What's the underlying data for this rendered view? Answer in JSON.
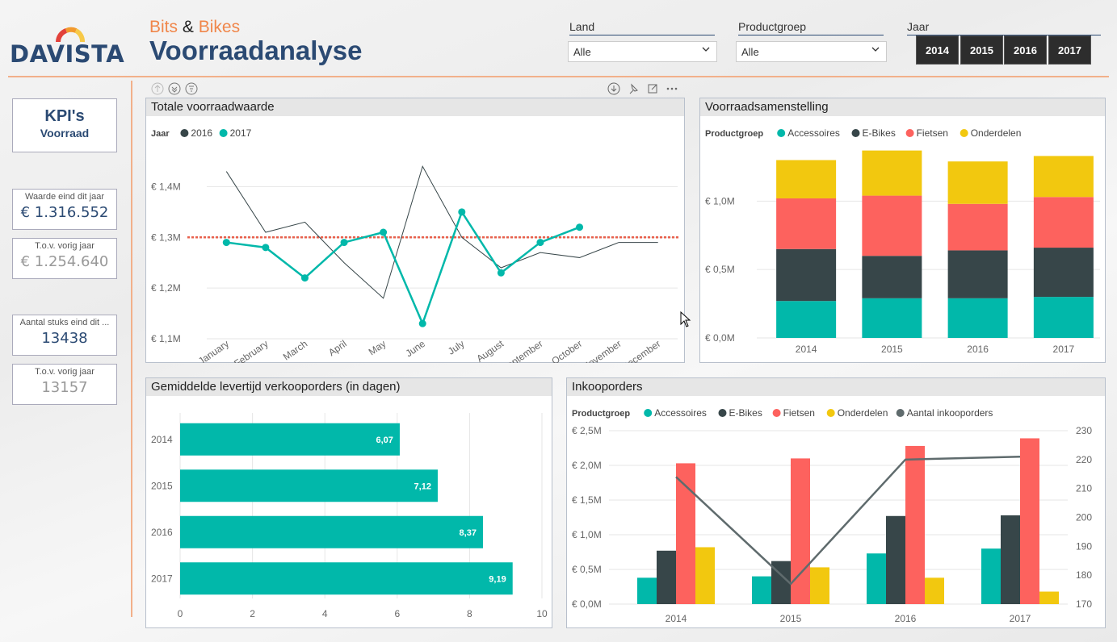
{
  "header": {
    "brand_part1": "Bits",
    "brand_amp": "&",
    "brand_part2": "Bikes",
    "title": "Voorraadanalyse",
    "logo_text": "DAVISTA"
  },
  "slicers": {
    "land": {
      "label": "Land",
      "value": "Alle"
    },
    "productgroep": {
      "label": "Productgroep",
      "value": "Alle"
    },
    "jaar": {
      "label": "Jaar",
      "years": [
        "2014",
        "2015",
        "2016",
        "2017"
      ]
    }
  },
  "kpi": {
    "title": "KPI's",
    "subtitle": "Voorraad",
    "cards": [
      {
        "label": "Waarde eind dit jaar",
        "value": "€ 1.316.552"
      },
      {
        "label": "T.o.v. vorig jaar",
        "value": "€ 1.254.640"
      },
      {
        "label": "Aantal stuks eind dit ...",
        "value": "13438"
      },
      {
        "label": "T.o.v. vorig jaar",
        "value": "13157"
      }
    ]
  },
  "colors": {
    "teal": "#01b8aa",
    "dark": "#374649",
    "red": "#fd625e",
    "yellow": "#f2c80f",
    "line_grey": "#5f6b6d",
    "ref_red": "#e8604c"
  },
  "chart_data": [
    {
      "id": "totale",
      "type": "line",
      "title": "Totale voorraadwaarde",
      "legend_title": "Jaar",
      "categories": [
        "January",
        "February",
        "March",
        "April",
        "May",
        "June",
        "July",
        "August",
        "September",
        "October",
        "November",
        "December"
      ],
      "yticks": [
        "€ 1,1M",
        "€ 1,2M",
        "€ 1,3M",
        "€ 1,4M"
      ],
      "ylim": [
        1.1,
        1.45
      ],
      "reference_line": 1.3,
      "series": [
        {
          "name": "2016",
          "color": "#374649",
          "values": [
            1.43,
            1.31,
            1.33,
            1.25,
            1.18,
            1.44,
            1.3,
            1.24,
            1.27,
            1.26,
            1.29,
            1.29
          ]
        },
        {
          "name": "2017",
          "color": "#01b8aa",
          "values": [
            1.29,
            1.28,
            1.22,
            1.29,
            1.31,
            1.13,
            1.35,
            1.23,
            1.29,
            1.32,
            null,
            null
          ]
        }
      ]
    },
    {
      "id": "samenstelling",
      "type": "bar",
      "stacked": true,
      "title": "Voorraadsamenstelling",
      "legend_title": "Productgroep",
      "categories": [
        "2014",
        "2015",
        "2016",
        "2017"
      ],
      "yticks": [
        "€ 0,0M",
        "€ 0,5M",
        "€ 1,0M"
      ],
      "ylim": [
        0,
        1.35
      ],
      "series": [
        {
          "name": "Accessoires",
          "color": "#01b8aa",
          "values": [
            0.27,
            0.29,
            0.29,
            0.3
          ]
        },
        {
          "name": "E-Bikes",
          "color": "#374649",
          "values": [
            0.38,
            0.31,
            0.35,
            0.36
          ]
        },
        {
          "name": "Fietsen",
          "color": "#fd625e",
          "values": [
            0.37,
            0.44,
            0.34,
            0.37
          ]
        },
        {
          "name": "Onderdelen",
          "color": "#f2c80f",
          "values": [
            0.28,
            0.33,
            0.31,
            0.3
          ]
        }
      ]
    },
    {
      "id": "levertijd",
      "type": "bar",
      "orientation": "horizontal",
      "title": "Gemiddelde levertijd verkooporders (in dagen)",
      "categories": [
        "2014",
        "2015",
        "2016",
        "2017"
      ],
      "values": [
        6.07,
        7.12,
        8.37,
        9.19
      ],
      "data_labels": [
        "6,07",
        "7,12",
        "8,37",
        "9,19"
      ],
      "xticks": [
        "0",
        "2",
        "4",
        "6",
        "8",
        "10"
      ],
      "xlim": [
        0,
        10
      ]
    },
    {
      "id": "inkoop",
      "type": "bar",
      "title": "Inkooporders",
      "legend_title": "Productgroep",
      "categories": [
        "2014",
        "2015",
        "2016",
        "2017"
      ],
      "yticks": [
        "€ 0,0M",
        "€ 0,5M",
        "€ 1,0M",
        "€ 1,5M",
        "€ 2,0M",
        "€ 2,5M"
      ],
      "ylim": [
        0,
        2.5
      ],
      "y2ticks": [
        "170",
        "180",
        "190",
        "200",
        "210",
        "220",
        "230"
      ],
      "y2lim": [
        170,
        230
      ],
      "series": [
        {
          "name": "Accessoires",
          "color": "#01b8aa",
          "values": [
            0.38,
            0.4,
            0.73,
            0.8
          ]
        },
        {
          "name": "E-Bikes",
          "color": "#374649",
          "values": [
            0.77,
            0.62,
            1.27,
            1.28
          ]
        },
        {
          "name": "Fietsen",
          "color": "#fd625e",
          "values": [
            2.03,
            2.1,
            2.28,
            2.39
          ]
        },
        {
          "name": "Onderdelen",
          "color": "#f2c80f",
          "values": [
            0.82,
            0.53,
            0.38,
            0.18
          ]
        }
      ],
      "line_series": {
        "name": "Aantal inkooporders",
        "color": "#5f6b6d",
        "values": [
          214,
          177,
          220,
          221
        ]
      }
    }
  ]
}
